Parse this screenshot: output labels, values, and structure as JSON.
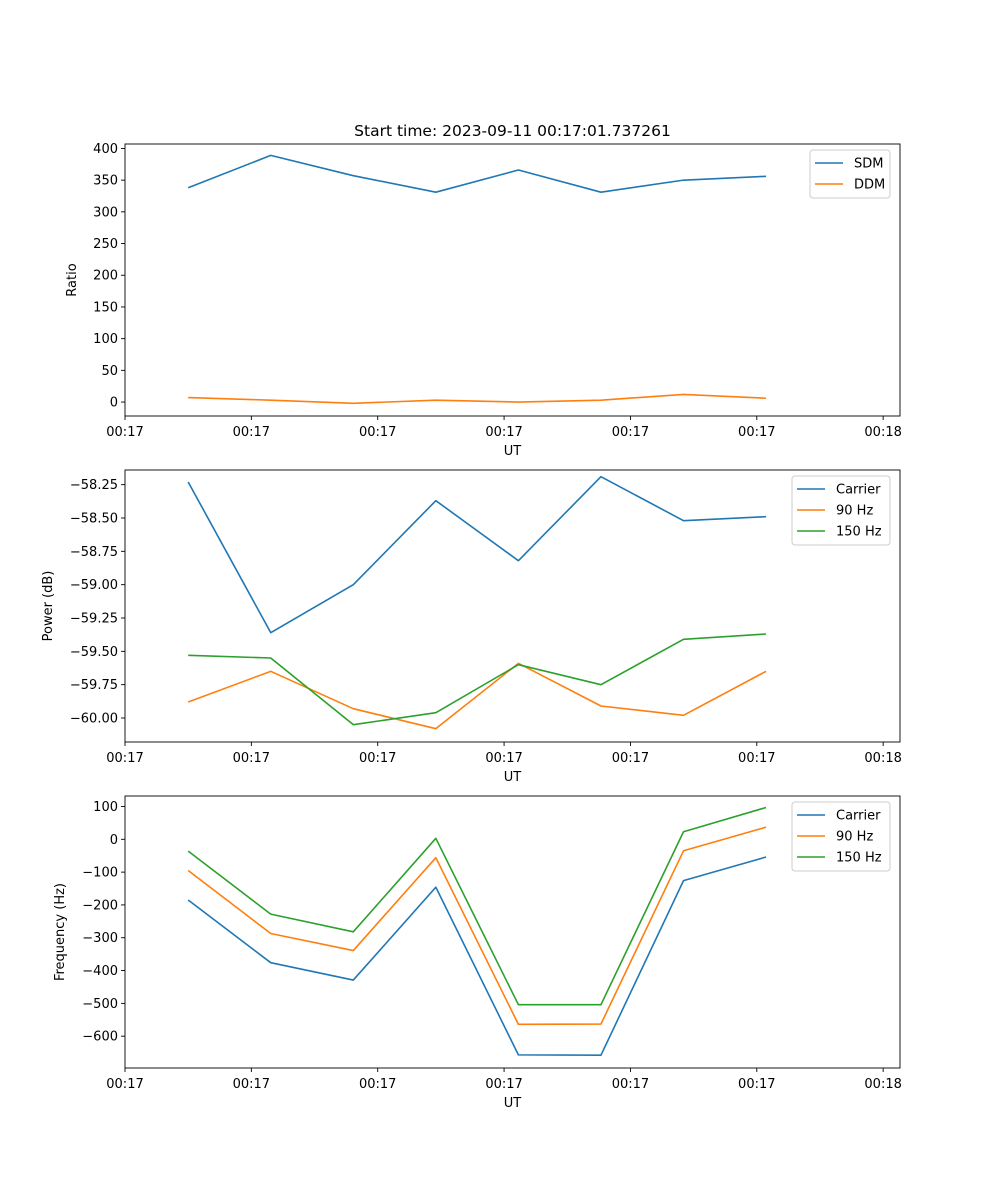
{
  "figure_title": "Start time: 2023-09-11 00:17:01.737261",
  "chart_data": [
    {
      "type": "line",
      "title": "Start time: 2023-09-11 00:17:01.737261",
      "xlabel": "UT",
      "ylabel": "Ratio",
      "xlim": [
        0,
        9.2
      ],
      "x_ticks": [
        0.0,
        1.5,
        3.0,
        4.5,
        6.0,
        7.5,
        9.0
      ],
      "x_tick_labels": [
        "00:17",
        "00:17",
        "00:17",
        "00:17",
        "00:17",
        "00:17",
        "00:18"
      ],
      "ylim": [
        -22,
        407
      ],
      "y_ticks": [
        0,
        50,
        100,
        150,
        200,
        250,
        300,
        350,
        400
      ],
      "y_tick_labels": [
        "0",
        "50",
        "100",
        "150",
        "200",
        "250",
        "300",
        "350",
        "400"
      ],
      "legend_position": "top-right",
      "x": [
        0.75,
        1.73,
        2.71,
        3.69,
        4.67,
        5.65,
        6.63,
        7.61
      ],
      "series": [
        {
          "name": "SDM",
          "color": "#1f77b4",
          "values": [
            338,
            389,
            357,
            331,
            366,
            331,
            350,
            356
          ]
        },
        {
          "name": "DDM",
          "color": "#ff7f0e",
          "values": [
            7,
            3,
            -2,
            3,
            0,
            3,
            12,
            6
          ]
        }
      ]
    },
    {
      "type": "line",
      "title": "",
      "xlabel": "UT",
      "ylabel": "Power (dB)",
      "xlim": [
        0,
        9.2
      ],
      "x_ticks": [
        0.0,
        1.5,
        3.0,
        4.5,
        6.0,
        7.5,
        9.0
      ],
      "x_tick_labels": [
        "00:17",
        "00:17",
        "00:17",
        "00:17",
        "00:17",
        "00:17",
        "00:18"
      ],
      "ylim": [
        -60.18,
        -58.14
      ],
      "y_ticks": [
        -60.0,
        -59.75,
        -59.5,
        -59.25,
        -59.0,
        -58.75,
        -58.5,
        -58.25
      ],
      "y_tick_labels": [
        "−60.00",
        "−59.75",
        "−59.50",
        "−59.25",
        "−59.00",
        "−58.75",
        "−58.50",
        "−58.25"
      ],
      "legend_position": "top-right",
      "x": [
        0.75,
        1.73,
        2.71,
        3.69,
        4.67,
        5.65,
        6.63,
        7.61
      ],
      "series": [
        {
          "name": "Carrier",
          "color": "#1f77b4",
          "values": [
            -58.23,
            -59.36,
            -59.0,
            -58.37,
            -58.82,
            -58.19,
            -58.52,
            -58.49
          ]
        },
        {
          "name": "90 Hz",
          "color": "#ff7f0e",
          "values": [
            -59.88,
            -59.65,
            -59.93,
            -60.08,
            -59.59,
            -59.91,
            -59.98,
            -59.65
          ]
        },
        {
          "name": "150 Hz",
          "color": "#2ca02c",
          "values": [
            -59.53,
            -59.55,
            -60.05,
            -59.96,
            -59.6,
            -59.75,
            -59.41,
            -59.37
          ]
        }
      ]
    },
    {
      "type": "line",
      "title": "",
      "xlabel": "UT",
      "ylabel": "Frequency (Hz)",
      "xlim": [
        0,
        9.2
      ],
      "x_ticks": [
        0.0,
        1.5,
        3.0,
        4.5,
        6.0,
        7.5,
        9.0
      ],
      "x_tick_labels": [
        "00:17",
        "00:17",
        "00:17",
        "00:17",
        "00:17",
        "00:17",
        "00:18"
      ],
      "ylim": [
        -697,
        132
      ],
      "y_ticks": [
        -600,
        -500,
        -400,
        -300,
        -200,
        -100,
        0,
        100
      ],
      "y_tick_labels": [
        "−600",
        "−500",
        "−400",
        "−300",
        "−200",
        "−100",
        "0",
        "100"
      ],
      "legend_position": "top-right",
      "x": [
        0.75,
        1.73,
        2.71,
        3.69,
        4.67,
        5.65,
        6.63,
        7.61
      ],
      "series": [
        {
          "name": "Carrier",
          "color": "#1f77b4",
          "values": [
            -185,
            -376,
            -429,
            -146,
            -657,
            -658,
            -126,
            -54
          ]
        },
        {
          "name": "90 Hz",
          "color": "#ff7f0e",
          "values": [
            -95,
            -287,
            -339,
            -56,
            -564,
            -563,
            -35,
            37
          ]
        },
        {
          "name": "150 Hz",
          "color": "#2ca02c",
          "values": [
            -36,
            -228,
            -282,
            3,
            -504,
            -504,
            23,
            97
          ]
        }
      ]
    }
  ]
}
